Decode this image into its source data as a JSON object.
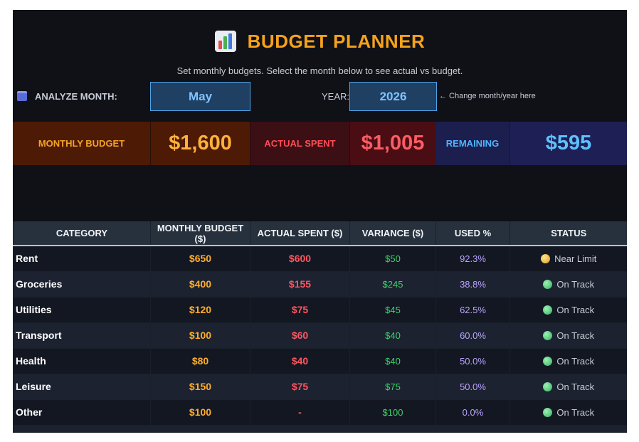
{
  "header": {
    "icon": "bar-chart-icon",
    "title": "BUDGET PLANNER",
    "subtitle": "Set monthly budgets. Select the month below to see actual vs budget."
  },
  "analyze": {
    "icon": "calendar-icon",
    "label": "ANALYZE MONTH:",
    "month": "May",
    "year_label": "YEAR:",
    "year": "2026",
    "hint": "← Change month/year here"
  },
  "summary": {
    "budget_label": "MONTHLY BUDGET",
    "budget_value": "$1,600",
    "actual_label": "ACTUAL SPENT",
    "actual_value": "$1,005",
    "remaining_label": "REMAINING",
    "remaining_value": "$595"
  },
  "table": {
    "headers": [
      "CATEGORY",
      "MONTHLY BUDGET ($)",
      "ACTUAL SPENT ($)",
      "VARIANCE ($)",
      "USED %",
      "STATUS"
    ],
    "rows": [
      {
        "category": "Rent",
        "budget": "$650",
        "actual": "$600",
        "variance": "$50",
        "used": "92.3%",
        "status": "Near Limit",
        "status_color": "#e0a21e"
      },
      {
        "category": "Groceries",
        "budget": "$400",
        "actual": "$155",
        "variance": "$245",
        "used": "38.8%",
        "status": "On Track",
        "status_color": "#2fb25a"
      },
      {
        "category": "Utilities",
        "budget": "$120",
        "actual": "$75",
        "variance": "$45",
        "used": "62.5%",
        "status": "On Track",
        "status_color": "#2fb25a"
      },
      {
        "category": "Transport",
        "budget": "$100",
        "actual": "$60",
        "variance": "$40",
        "used": "60.0%",
        "status": "On Track",
        "status_color": "#2fb25a"
      },
      {
        "category": "Health",
        "budget": "$80",
        "actual": "$40",
        "variance": "$40",
        "used": "50.0%",
        "status": "On Track",
        "status_color": "#2fb25a"
      },
      {
        "category": "Leisure",
        "budget": "$150",
        "actual": "$75",
        "variance": "$75",
        "used": "50.0%",
        "status": "On Track",
        "status_color": "#2fb25a"
      },
      {
        "category": "Other",
        "budget": "$100",
        "actual": "-",
        "variance": "$100",
        "used": "0.0%",
        "status": "On Track",
        "status_color": "#2fb25a"
      }
    ]
  }
}
